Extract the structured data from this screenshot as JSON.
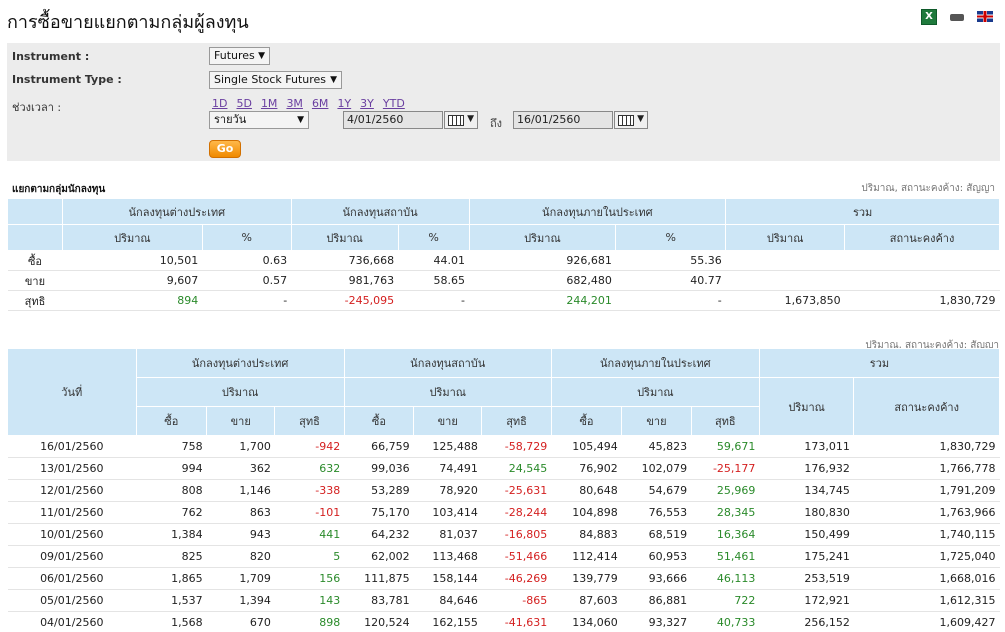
{
  "page": {
    "title": "การซื้อขายแยกตามกลุ่มผู้ลงทุน"
  },
  "icons": [
    "excel-icon",
    "printer-icon",
    "english-flag-icon"
  ],
  "filters": {
    "instrument_label": "Instrument :",
    "instrument_value": "Futures",
    "type_label": "Instrument Type :",
    "type_value": "Single Stock Futures",
    "period_label": "ช่วงเวลา :",
    "periods": [
      "1D",
      "5D",
      "1M",
      "3M",
      "6M",
      "1Y",
      "3Y",
      "YTD"
    ],
    "frequency_value": "รายวัน",
    "from_date": "4/01/2560",
    "to_label": "ถึง",
    "to_date": "16/01/2560",
    "go_label": "Go"
  },
  "summary": {
    "section_label": "แยกตามกลุ่มนักลงทุน",
    "unit_note": "ปริมาณ, สถานะคงค้าง: สัญญา",
    "groups": [
      "นักลงทุนต่างประเทศ",
      "นักลงทุนสถาบัน",
      "นักลงทุนภายในประเทศ",
      "รวม"
    ],
    "sub": {
      "vol": "ปริมาณ",
      "pct": "%",
      "oi": "สถานะคงค้าง"
    },
    "rows": [
      {
        "label": "ซื้อ",
        "f_vol": "10,501",
        "f_pct": "0.63",
        "i_vol": "736,668",
        "i_pct": "44.01",
        "l_vol": "926,681",
        "l_pct": "55.36",
        "t_vol": "",
        "t_oi": ""
      },
      {
        "label": "ขาย",
        "f_vol": "9,607",
        "f_pct": "0.57",
        "i_vol": "981,763",
        "i_pct": "58.65",
        "l_vol": "682,480",
        "l_pct": "40.77",
        "t_vol": "",
        "t_oi": ""
      },
      {
        "label": "สุทธิ",
        "f_vol": "894",
        "f_pct": "-",
        "i_vol": "-245,095",
        "i_pct": "-",
        "l_vol": "244,201",
        "l_pct": "-",
        "t_vol": "1,673,850",
        "t_oi": "1,830,729"
      }
    ]
  },
  "daily": {
    "unit_note": "ปริมาณ, สถานะคงค้าง: สัญญา",
    "date_header": "วันที่",
    "groups": [
      "นักลงทุนต่างประเทศ",
      "นักลงทุนสถาบัน",
      "นักลงทุนภายในประเทศ",
      "รวม"
    ],
    "vol_header": "ปริมาณ",
    "oi_header": "สถานะคงค้าง",
    "sub": [
      "ซื้อ",
      "ขาย",
      "สุทธิ"
    ],
    "rows": [
      [
        "16/01/2560",
        "758",
        "1,700",
        "-942",
        "66,759",
        "125,488",
        "-58,729",
        "105,494",
        "45,823",
        "59,671",
        "173,011",
        "1,830,729"
      ],
      [
        "13/01/2560",
        "994",
        "362",
        "632",
        "99,036",
        "74,491",
        "24,545",
        "76,902",
        "102,079",
        "-25,177",
        "176,932",
        "1,766,778"
      ],
      [
        "12/01/2560",
        "808",
        "1,146",
        "-338",
        "53,289",
        "78,920",
        "-25,631",
        "80,648",
        "54,679",
        "25,969",
        "134,745",
        "1,791,209"
      ],
      [
        "11/01/2560",
        "762",
        "863",
        "-101",
        "75,170",
        "103,414",
        "-28,244",
        "104,898",
        "76,553",
        "28,345",
        "180,830",
        "1,763,966"
      ],
      [
        "10/01/2560",
        "1,384",
        "943",
        "441",
        "64,232",
        "81,037",
        "-16,805",
        "84,883",
        "68,519",
        "16,364",
        "150,499",
        "1,740,115"
      ],
      [
        "09/01/2560",
        "825",
        "820",
        "5",
        "62,002",
        "113,468",
        "-51,466",
        "112,414",
        "60,953",
        "51,461",
        "175,241",
        "1,725,040"
      ],
      [
        "06/01/2560",
        "1,865",
        "1,709",
        "156",
        "111,875",
        "158,144",
        "-46,269",
        "139,779",
        "93,666",
        "46,113",
        "253,519",
        "1,668,016"
      ],
      [
        "05/01/2560",
        "1,537",
        "1,394",
        "143",
        "83,781",
        "84,646",
        "-865",
        "87,603",
        "86,881",
        "722",
        "172,921",
        "1,612,315"
      ],
      [
        "04/01/2560",
        "1,568",
        "670",
        "898",
        "120,524",
        "162,155",
        "-41,631",
        "134,060",
        "93,327",
        "40,733",
        "256,152",
        "1,609,427"
      ]
    ]
  }
}
